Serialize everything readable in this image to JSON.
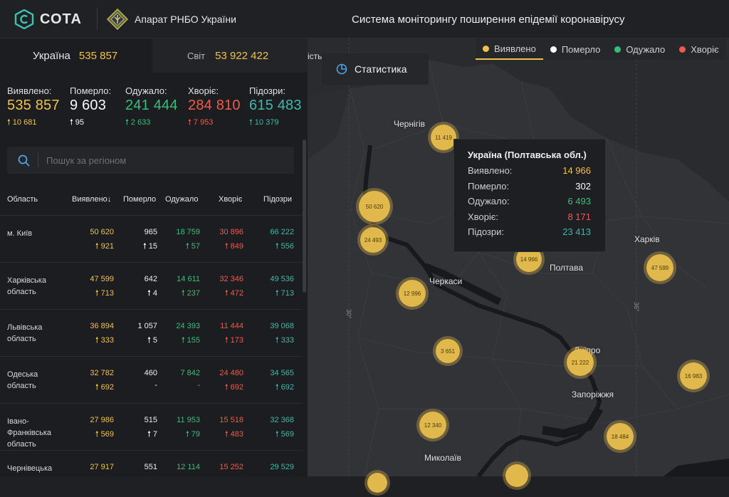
{
  "header": {
    "logo_text": "СОТА",
    "org_name": "Апарат РНБО України",
    "system_title": "Система моніторингу поширення епідемії коронавірусу"
  },
  "summary_tabs": {
    "ukraine_label": "Україна",
    "ukraine_value": "535 857",
    "world_label": "Світ",
    "world_value": "53 922 422"
  },
  "totals": {
    "detected": {
      "label": "Виявлено:",
      "value": "535 857",
      "delta": "10 681"
    },
    "died": {
      "label": "Померло:",
      "value": "9 603",
      "delta": "95"
    },
    "recovered": {
      "label": "Одужало:",
      "value": "241 444",
      "delta": "2 633"
    },
    "sick": {
      "label": "Хворіє:",
      "value": "284 810",
      "delta": "7 953"
    },
    "suspected": {
      "label": "Підозри:",
      "value": "615 483",
      "delta": "10 379"
    }
  },
  "search": {
    "placeholder": "Пошук за регіоном"
  },
  "table": {
    "headers": {
      "region": "Область",
      "detected": "Виявлено",
      "died": "Померло",
      "recovered": "Одужало",
      "sick": "Хворіє",
      "suspected": "Підозри"
    },
    "rows": [
      {
        "region": "м. Київ",
        "detected": "50 620",
        "detected_d": "921",
        "died": "965",
        "died_d": "15",
        "recovered": "18 759",
        "recovered_d": "57",
        "sick": "30 896",
        "sick_d": "849",
        "suspected": "66 222",
        "suspected_d": "556"
      },
      {
        "region": "Харківська область",
        "detected": "47 599",
        "detected_d": "713",
        "died": "642",
        "died_d": "4",
        "recovered": "14 611",
        "recovered_d": "237",
        "sick": "32 346",
        "sick_d": "472",
        "suspected": "49 536",
        "suspected_d": "713"
      },
      {
        "region": "Львівська область",
        "detected": "36 894",
        "detected_d": "333",
        "died": "1 057",
        "died_d": "5",
        "recovered": "24 393",
        "recovered_d": "155",
        "sick": "11 444",
        "sick_d": "173",
        "suspected": "39 068",
        "suspected_d": "333"
      },
      {
        "region": "Одеська область",
        "detected": "32 782",
        "detected_d": "692",
        "died": "460",
        "died_d": "-",
        "recovered": "7 842",
        "recovered_d": "-",
        "sick": "24 480",
        "sick_d": "692",
        "suspected": "34 565",
        "suspected_d": "692"
      },
      {
        "region": "Івано-Франківська область",
        "detected": "27 986",
        "detected_d": "569",
        "died": "515",
        "died_d": "7",
        "recovered": "11 953",
        "recovered_d": "79",
        "sick": "15 518",
        "sick_d": "483",
        "suspected": "32 368",
        "suspected_d": "569"
      },
      {
        "region": "Чернівецька",
        "detected": "27 917",
        "detected_d": "",
        "died": "551",
        "died_d": "",
        "recovered": "12 114",
        "recovered_d": "",
        "sick": "15 252",
        "sick_d": "",
        "suspected": "29 529",
        "suspected_d": ""
      }
    ]
  },
  "map": {
    "stats_button": "Статистика",
    "legend": [
      {
        "label": "Виявлено",
        "color": "#f2c14a"
      },
      {
        "label": "Померло",
        "color": "#ffffff"
      },
      {
        "label": "Одужало",
        "color": "#35c07a"
      },
      {
        "label": "Хворіє",
        "color": "#ef5b4b"
      }
    ],
    "cities": [
      "Чернігів",
      "Харків",
      "Полтава",
      "Черкаси",
      "Дніпро",
      "Запоріжжя",
      "Миколаїв"
    ],
    "bubbles": [
      "11 419",
      "50 620",
      "24 493",
      "14 966",
      "47 599",
      "12 996",
      "3 651",
      "21 222",
      "16 983",
      "12 340",
      "18 484"
    ],
    "partial_label": "ість",
    "grid_labels": [
      "30°",
      "36°"
    ],
    "tooltip": {
      "title": "Україна (Полтавська обл.)",
      "rows": [
        {
          "label": "Виявлено:",
          "value": "14 966"
        },
        {
          "label": "Померло:",
          "value": "302"
        },
        {
          "label": "Одужало:",
          "value": "6 493"
        },
        {
          "label": "Хворіє:",
          "value": "8 171"
        },
        {
          "label": "Підозри:",
          "value": "23 413"
        }
      ]
    }
  }
}
